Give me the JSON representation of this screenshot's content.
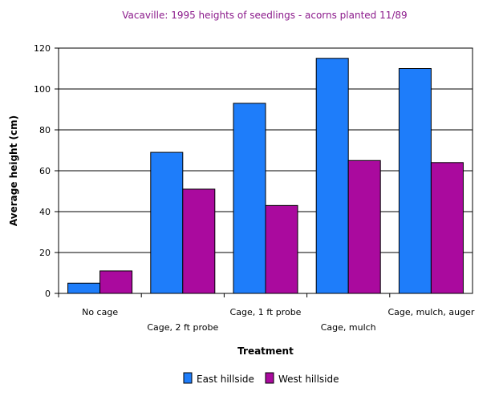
{
  "chart_data": {
    "type": "bar",
    "title": "Vacaville: 1995 heights of seedlings - acorns planted 11/89",
    "xlabel": "Treatment",
    "ylabel": "Average height (cm)",
    "ylim": [
      0,
      120
    ],
    "yticks": [
      "0",
      "20",
      "40",
      "60",
      "80",
      "100",
      "120"
    ],
    "categories": [
      "No cage",
      "Cage, 2 ft probe",
      "Cage, 1 ft probe",
      "Cage, mulch",
      "Cage, mulch, auger"
    ],
    "series": [
      {
        "name": "East hillside",
        "color": "#1e7dfa",
        "values": [
          5,
          69,
          93,
          115,
          110
        ]
      },
      {
        "name": "West hillside",
        "color": "#aa0a9e",
        "values": [
          11,
          51,
          43,
          65,
          64
        ]
      }
    ],
    "grid": true,
    "legend_position": "bottom"
  }
}
